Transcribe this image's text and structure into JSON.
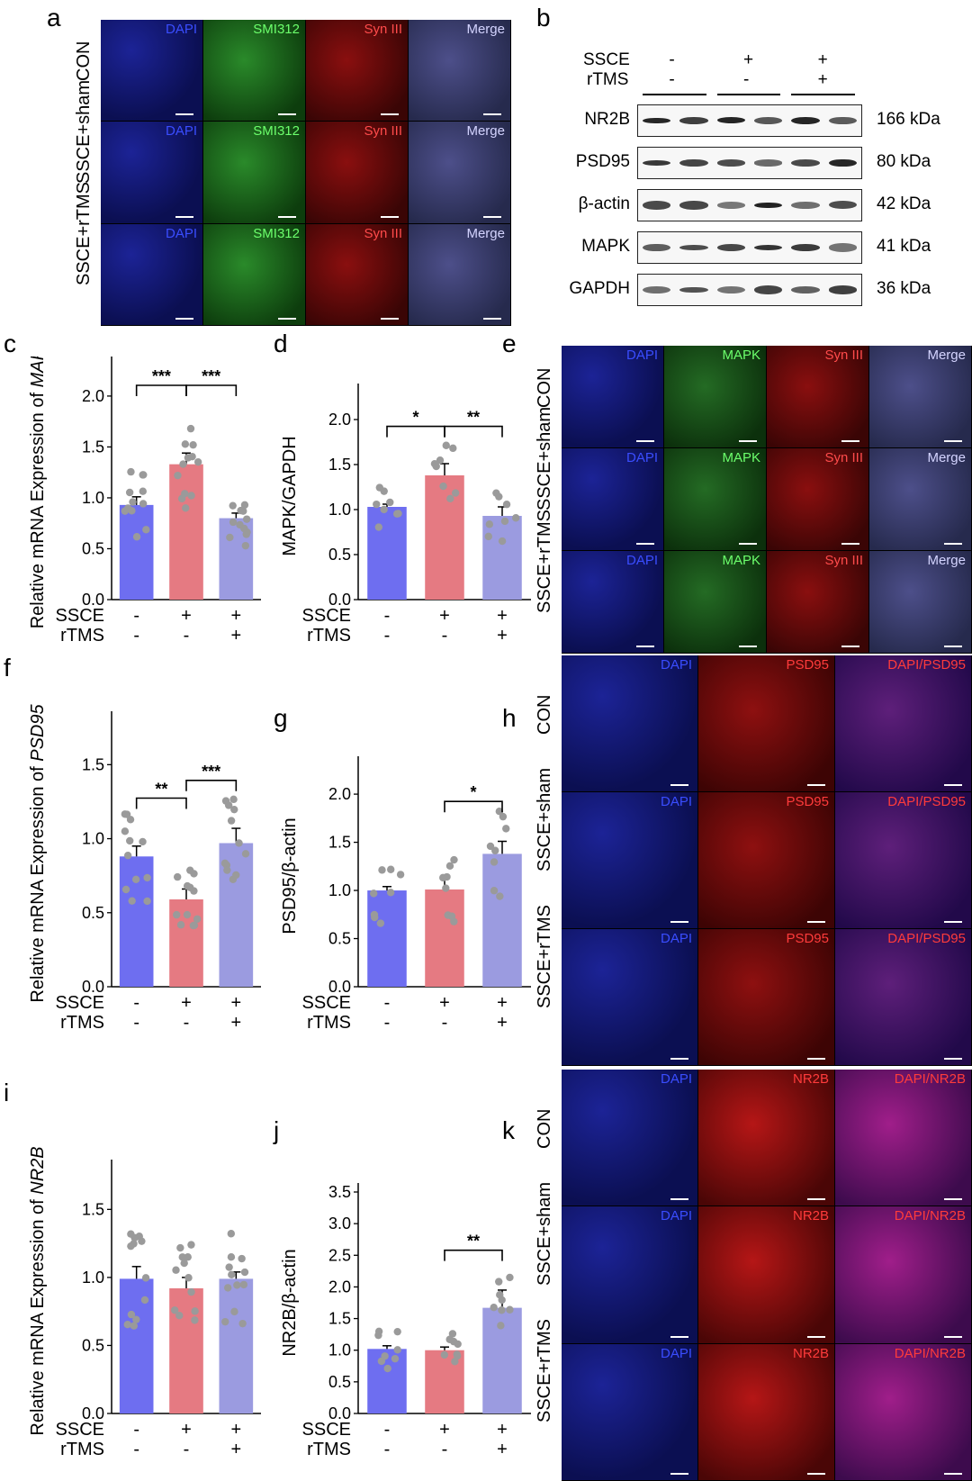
{
  "panels": {
    "a": "a",
    "b": "b",
    "c": "c",
    "d": "d",
    "e": "e",
    "f": "f",
    "g": "g",
    "h": "h",
    "i": "i",
    "j": "j",
    "k": "k"
  },
  "colors": {
    "con": "#6e6ef0",
    "sham": "#e57a82",
    "rtms": "#9b9be0",
    "dot": "#9a9a9a",
    "dapi": "#1a1f8c",
    "green": "#1f7a1f",
    "red": "#9a0d0d"
  },
  "panel_a": {
    "rows": [
      "CON",
      "SSCE+sham",
      "SSCE+rTMS"
    ],
    "channels": [
      "DAPI",
      "SMI312",
      "Syn III",
      "Merge"
    ]
  },
  "panel_e": {
    "rows": [
      "CON",
      "SSCE+sham",
      "SSCE+rTMS"
    ],
    "channels": [
      "DAPI",
      "MAPK",
      "Syn III",
      "Merge"
    ]
  },
  "panel_h": {
    "rows": [
      "CON",
      "SSCE+sham",
      "SSCE+rTMS"
    ],
    "channels": [
      "DAPI",
      "PSD95",
      "DAPI/PSD95"
    ]
  },
  "panel_k": {
    "rows": [
      "CON",
      "SSCE+sham",
      "SSCE+rTMS"
    ],
    "channels": [
      "DAPI",
      "NR2B",
      "DAPI/NR2B"
    ]
  },
  "western_blot": {
    "header_rows": [
      {
        "name": "SSCE",
        "marks": [
          "-",
          "+",
          "+"
        ]
      },
      {
        "name": "rTMS",
        "marks": [
          "-",
          "-",
          "+"
        ]
      }
    ],
    "bands": [
      {
        "name": "NR2B",
        "size": "166 kDa"
      },
      {
        "name": "PSD95",
        "size": "80 kDa"
      },
      {
        "name": "β-actin",
        "size": "42 kDa"
      },
      {
        "name": "MAPK",
        "size": "41 kDa"
      },
      {
        "name": "GAPDH",
        "size": "36 kDa"
      }
    ]
  },
  "chart_data": [
    {
      "id": "c",
      "type": "bar",
      "ylabel": "Relative mRNA Expression of MAPK",
      "ylabel_prefix": "Relative mRNA Expression of ",
      "ylabel_italic": "MAPK",
      "yticks": [
        "0.0",
        "0.5",
        "1.0",
        "1.5",
        "2.0"
      ],
      "ylim": [
        0,
        2.3
      ],
      "categories": [
        "CON",
        "SSCE+sham",
        "SSCE+rTMS"
      ],
      "values": [
        0.93,
        1.33,
        0.8
      ],
      "errors": [
        0.08,
        0.11,
        0.05
      ],
      "group_rows": [
        {
          "name": "SSCE",
          "marks": [
            "-",
            "+",
            "+"
          ]
        },
        {
          "name": "rTMS",
          "marks": [
            "-",
            "-",
            "+"
          ]
        }
      ],
      "significance": [
        {
          "from": 0,
          "to": 1,
          "label": "***"
        },
        {
          "from": 1,
          "to": 2,
          "label": "***"
        }
      ]
    },
    {
      "id": "d",
      "type": "bar",
      "ylabel": "MAPK/GAPDH",
      "yticks": [
        "0.0",
        "0.5",
        "1.0",
        "1.5",
        "2.0"
      ],
      "ylim": [
        0,
        2.3
      ],
      "categories": [
        "CON",
        "SSCE+sham",
        "SSCE+rTMS"
      ],
      "values": [
        1.03,
        1.38,
        0.93
      ],
      "errors": [
        0.03,
        0.13,
        0.1
      ],
      "group_rows": [
        {
          "name": "SSCE",
          "marks": [
            "-",
            "+",
            "+"
          ]
        },
        {
          "name": "rTMS",
          "marks": [
            "-",
            "-",
            "+"
          ]
        }
      ],
      "significance": [
        {
          "from": 0,
          "to": 1,
          "label": "*"
        },
        {
          "from": 1,
          "to": 2,
          "label": "**"
        }
      ]
    },
    {
      "id": "f",
      "type": "bar",
      "ylabel": "Relative mRNA Expression of PSD95",
      "ylabel_prefix": "Relative mRNA Expression of ",
      "ylabel_italic": "PSD95",
      "yticks": [
        "0.0",
        "0.5",
        "1.0",
        "1.5"
      ],
      "ylim": [
        0,
        1.8
      ],
      "categories": [
        "CON",
        "SSCE+sham",
        "SSCE+rTMS"
      ],
      "values": [
        0.88,
        0.59,
        0.97
      ],
      "errors": [
        0.07,
        0.07,
        0.1
      ],
      "group_rows": [
        {
          "name": "SSCE",
          "marks": [
            "-",
            "+",
            "+"
          ]
        },
        {
          "name": "rTMS",
          "marks": [
            "-",
            "-",
            "+"
          ]
        }
      ],
      "significance": [
        {
          "from": 0,
          "to": 1,
          "label": "**"
        },
        {
          "from": 1,
          "to": 2,
          "label": "***"
        }
      ]
    },
    {
      "id": "g",
      "type": "bar",
      "ylabel": "PSD95/β-actin",
      "yticks": [
        "0.0",
        "0.5",
        "1.0",
        "1.5",
        "2.0"
      ],
      "ylim": [
        0,
        2.3
      ],
      "categories": [
        "CON",
        "SSCE+sham",
        "SSCE+rTMS"
      ],
      "values": [
        1.0,
        1.01,
        1.38
      ],
      "errors": [
        0.04,
        0.12,
        0.13
      ],
      "group_rows": [
        {
          "name": "SSCE",
          "marks": [
            "-",
            "+",
            "+"
          ]
        },
        {
          "name": "rTMS",
          "marks": [
            "-",
            "-",
            "+"
          ]
        }
      ],
      "significance": [
        {
          "from": 1,
          "to": 2,
          "label": "*"
        }
      ]
    },
    {
      "id": "i",
      "type": "bar",
      "ylabel": "Relative mRNA Expression of NR2B",
      "ylabel_prefix": "Relative mRNA Expression of ",
      "ylabel_italic": "NR2B",
      "yticks": [
        "0.0",
        "0.5",
        "1.0",
        "1.5"
      ],
      "ylim": [
        0,
        1.8
      ],
      "categories": [
        "CON",
        "SSCE+sham",
        "SSCE+rTMS"
      ],
      "values": [
        0.99,
        0.92,
        0.99
      ],
      "errors": [
        0.09,
        0.08,
        0.05
      ],
      "group_rows": [
        {
          "name": "SSCE",
          "marks": [
            "-",
            "+",
            "+"
          ]
        },
        {
          "name": "rTMS",
          "marks": [
            "-",
            "-",
            "+"
          ]
        }
      ],
      "significance": []
    },
    {
      "id": "j",
      "type": "bar",
      "ylabel": "NR2B/β-actin",
      "yticks": [
        "0.0",
        "0.5",
        "1.0",
        "1.5",
        "2.0",
        "2.5",
        "3.0",
        "3.5"
      ],
      "ylim": [
        0,
        3.5
      ],
      "categories": [
        "CON",
        "SSCE+sham",
        "SSCE+rTMS"
      ],
      "values": [
        1.02,
        1.0,
        1.67
      ],
      "errors": [
        0.05,
        0.05,
        0.28
      ],
      "group_rows": [
        {
          "name": "SSCE",
          "marks": [
            "-",
            "+",
            "+"
          ]
        },
        {
          "name": "rTMS",
          "marks": [
            "-",
            "-",
            "+"
          ]
        }
      ],
      "significance": [
        {
          "from": 1,
          "to": 2,
          "label": "**"
        }
      ]
    }
  ]
}
